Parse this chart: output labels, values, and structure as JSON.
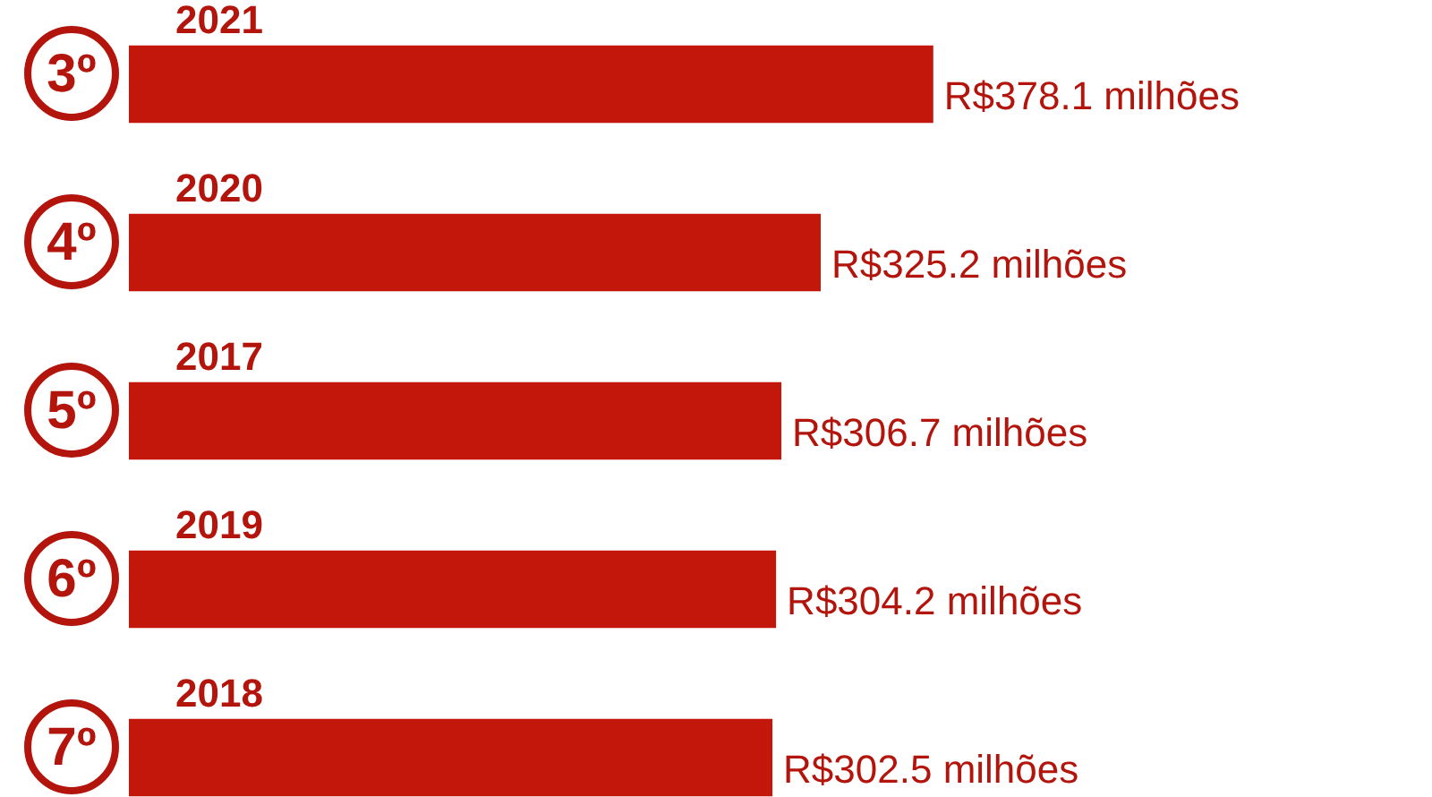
{
  "chart_data": {
    "type": "bar",
    "orientation": "horizontal",
    "categories": [
      "2021",
      "2020",
      "2017",
      "2019",
      "2018"
    ],
    "values": [
      378.1,
      325.2,
      306.7,
      304.2,
      302.5
    ],
    "value_labels": [
      "R$378.1 milhões",
      "R$325.2 milhões",
      "R$306.7 milhões",
      "R$304.2 milhões",
      "R$302.5 milhões"
    ],
    "color": "#c4170c",
    "annotations": [
      "3º",
      "4º",
      "5º",
      "6º",
      "7º"
    ]
  }
}
